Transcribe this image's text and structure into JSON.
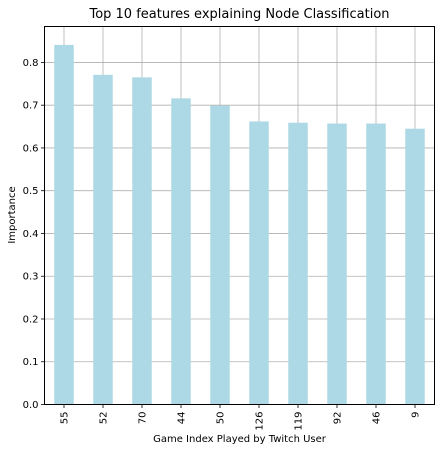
{
  "chart_data": {
    "type": "bar",
    "title": "Top 10 features explaining Node Classification",
    "xlabel": "Game Index Played by Twitch User",
    "ylabel": "Importance",
    "categories": [
      "55",
      "52",
      "70",
      "44",
      "50",
      "126",
      "119",
      "92",
      "46",
      "9"
    ],
    "values": [
      0.841,
      0.771,
      0.765,
      0.716,
      0.699,
      0.662,
      0.659,
      0.657,
      0.657,
      0.645
    ],
    "ylim": [
      0,
      0.884
    ],
    "yticks": [
      "0.0",
      "0.1",
      "0.2",
      "0.3",
      "0.4",
      "0.5",
      "0.6",
      "0.7",
      "0.8"
    ],
    "grid": true,
    "bar_color": "#add8e6",
    "grid_color": "#b0b0b0"
  }
}
